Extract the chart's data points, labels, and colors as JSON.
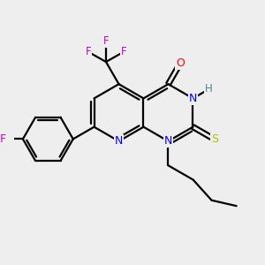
{
  "bg_color": "#eeeeee",
  "bond_color": "#000000",
  "bond_width": 1.6,
  "atom_colors": {
    "N": "#0000ff",
    "O": "#ff0000",
    "S": "#bbbb00",
    "F": "#cc00cc",
    "H": "#4a8888",
    "C": "#000000"
  },
  "figsize": [
    3.0,
    3.0
  ],
  "dpi": 100
}
